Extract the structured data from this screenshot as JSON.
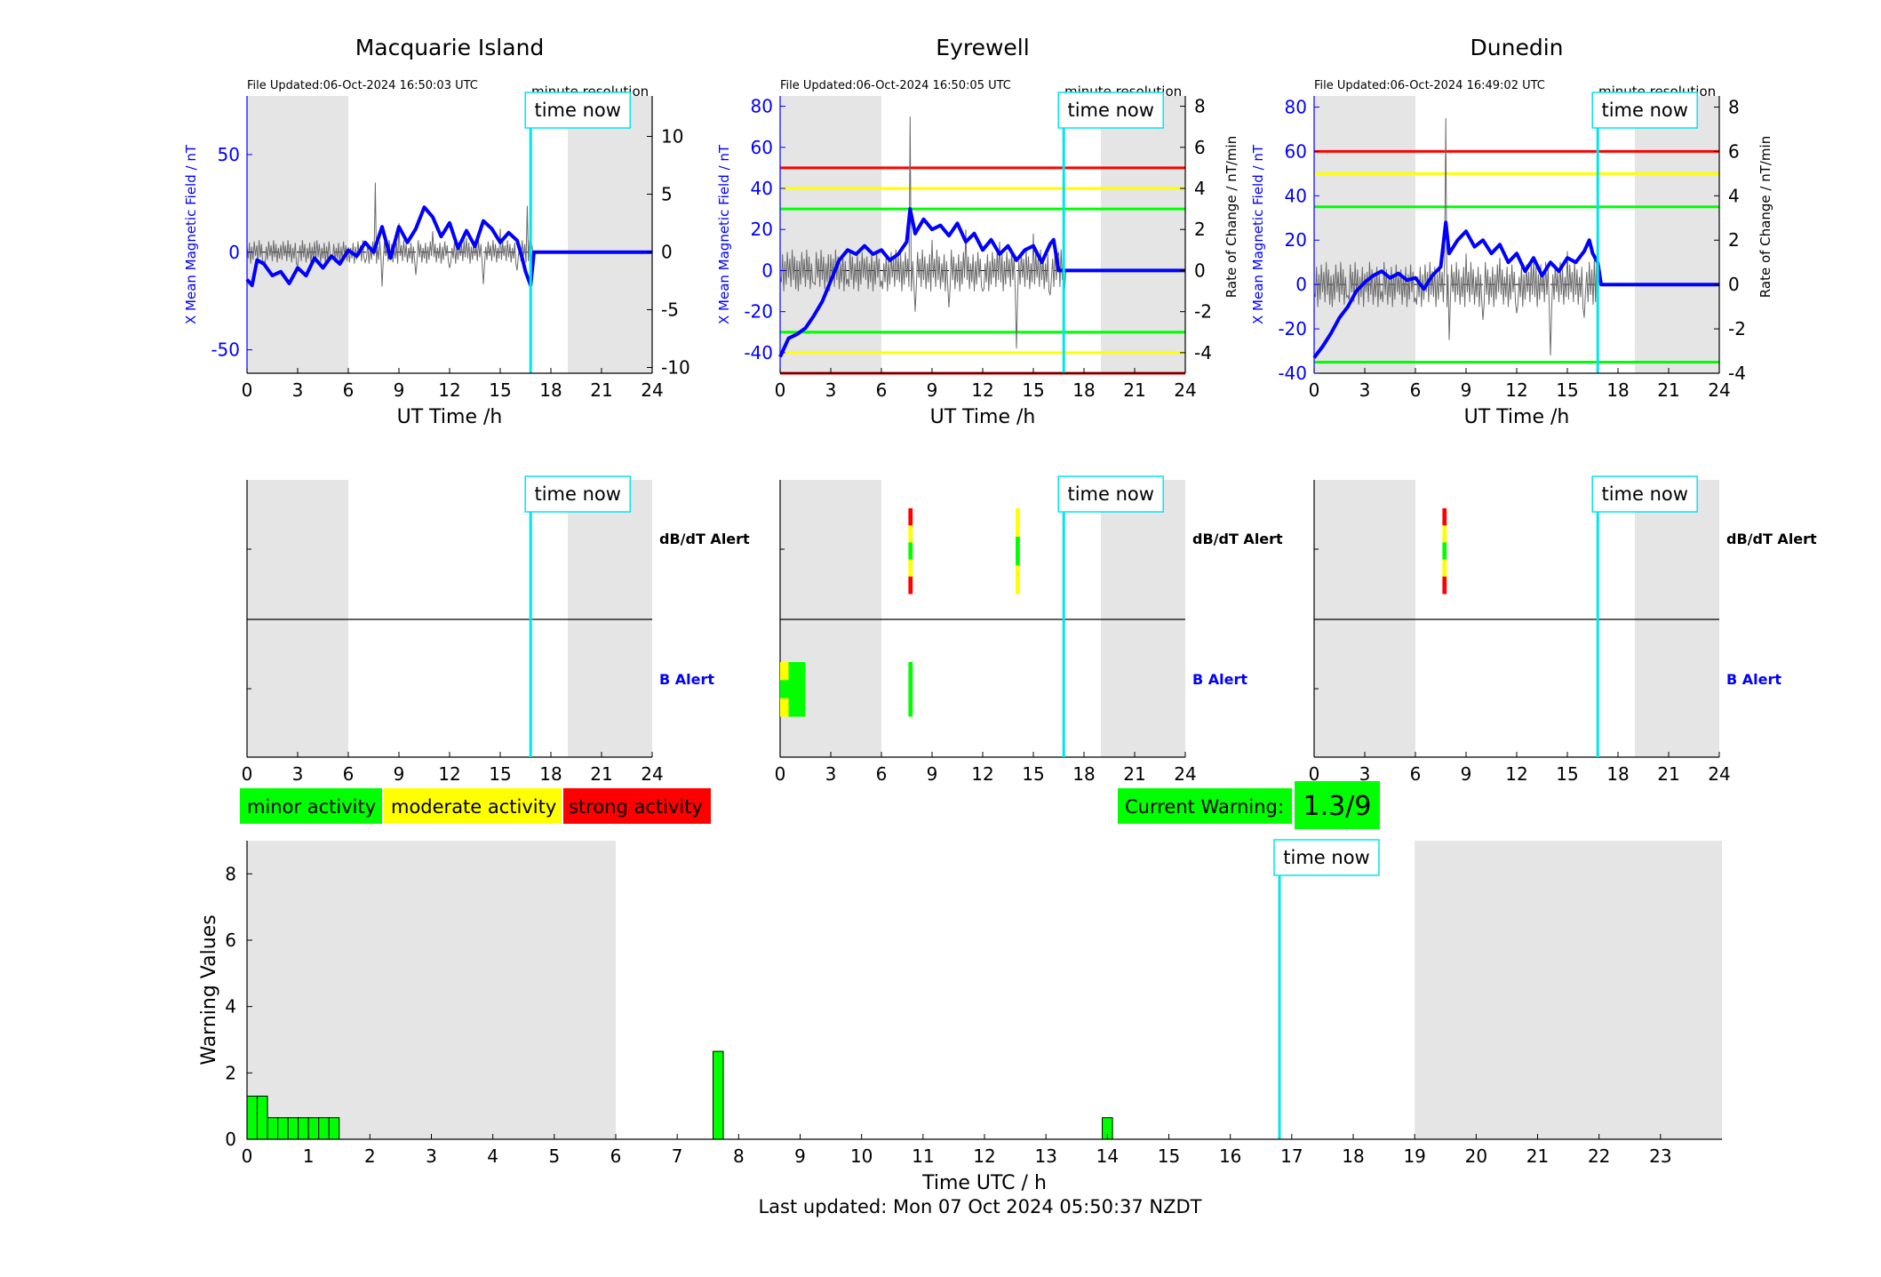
{
  "colors": {
    "x_field": "#0000ff",
    "rate_trace": "#6b6b6b",
    "time_now": "#00e5ee",
    "night_shade": "#e5e5e5",
    "minor": "#00ff00",
    "moderate": "#ffff00",
    "strong": "#ff0000",
    "b_alert_label": "#0000ff"
  },
  "time_now_label": "time now",
  "stations": [
    {
      "name": "Macquarie Island",
      "file_updated": "File Updated:06-Oct-2024 16:50:03 UTC",
      "resolution": "minute resolution",
      "left_axis_label": "X Mean Magnetic Field / nT",
      "right_axis_label": "",
      "x_label": "UT Time /h"
    },
    {
      "name": "Eyrewell",
      "file_updated": "File Updated:06-Oct-2024 16:50:05 UTC",
      "resolution": "minute resolution",
      "left_axis_label": "X Mean Magnetic Field / nT",
      "right_axis_label": "Rate of Change / nT/min",
      "x_label": "UT Time /h"
    },
    {
      "name": "Dunedin",
      "file_updated": "File Updated:06-Oct-2024 16:49:02 UTC",
      "resolution": "minute resolution",
      "left_axis_label": "X Mean Magnetic Field / nT",
      "right_axis_label": "Rate of Change / nT/min",
      "x_label": "UT Time /h"
    }
  ],
  "alerts": {
    "dbdt_label": "dB/dT Alert",
    "b_label": "B Alert"
  },
  "legend": {
    "minor": "minor activity",
    "moderate": "moderate activity",
    "strong": "strong activity"
  },
  "current_warning": {
    "label": "Current Warning:",
    "value": "1.3/9"
  },
  "footer": {
    "last_updated": "Last updated: Mon 07 Oct 2024 05:50:37 NZDT"
  },
  "chart_data": [
    {
      "type": "line",
      "title": "Macquarie Island",
      "xlabel": "UT Time /h",
      "ylabel": "X Mean Magnetic Field / nT",
      "xlim": [
        0,
        24
      ],
      "ylim": [
        -62,
        80
      ],
      "y2lim": [
        -10.5,
        13.5
      ],
      "xticks": [
        0,
        3,
        6,
        9,
        12,
        15,
        18,
        21,
        24
      ],
      "yticks": [
        -50,
        0,
        50
      ],
      "y2ticks": [
        -10,
        -5,
        0,
        5,
        10
      ],
      "night_shading_hours": [
        [
          0,
          6
        ],
        [
          19,
          24
        ]
      ],
      "time_now_hour": 16.8,
      "series": [
        {
          "name": "X Mean Magnetic Field / nT",
          "x": [
            0,
            0.3,
            0.6,
            1,
            1.5,
            2,
            2.5,
            3,
            3.5,
            4,
            4.5,
            5,
            5.5,
            6,
            6.5,
            7,
            7.5,
            8,
            8.5,
            9,
            9.5,
            10,
            10.5,
            11,
            11.5,
            12,
            12.5,
            13,
            13.5,
            14,
            14.5,
            15,
            15.5,
            16,
            16.3,
            16.5,
            16.8,
            17,
            18,
            24
          ],
          "y": [
            -14,
            -17,
            -4,
            -6,
            -12,
            -10,
            -16,
            -8,
            -12,
            -3,
            -8,
            -2,
            -6,
            1,
            -2,
            5,
            0,
            13,
            -3,
            13,
            5,
            12,
            23,
            18,
            8,
            15,
            2,
            11,
            3,
            16,
            12,
            5,
            10,
            6,
            -3,
            -10,
            -17,
            0,
            0,
            0
          ]
        },
        {
          "name": "Rate of Change / nT/min",
          "x": [
            0,
            1,
            2,
            3,
            4,
            5,
            6,
            7,
            7.6,
            8,
            9,
            10,
            11,
            12,
            13,
            14,
            15,
            16,
            16.6,
            17,
            24
          ],
          "y": [
            0.5,
            -0.8,
            0.6,
            -1.2,
            0.9,
            -0.6,
            0.4,
            -0.9,
            6,
            -3,
            2.5,
            -2,
            1.8,
            -1.4,
            1.2,
            -2.8,
            2,
            -1.6,
            4,
            0,
            0
          ]
        }
      ]
    },
    {
      "type": "line",
      "title": "Eyrewell",
      "xlabel": "UT Time /h",
      "ylabel": "X Mean Magnetic Field / nT",
      "y2label": "Rate of Change / nT/min",
      "xlim": [
        0,
        24
      ],
      "ylim": [
        -50,
        85
      ],
      "y2lim": [
        -5,
        8.5
      ],
      "xticks": [
        0,
        3,
        6,
        9,
        12,
        15,
        18,
        21,
        24
      ],
      "yticks": [
        -40,
        -20,
        0,
        20,
        40,
        60,
        80
      ],
      "y2ticks": [
        -4,
        -2,
        0,
        2,
        4,
        6,
        8
      ],
      "thresholds": [
        {
          "level": "strong",
          "y": 50
        },
        {
          "level": "moderate",
          "y": 40
        },
        {
          "level": "minor",
          "y": 30
        },
        {
          "level": "minor",
          "y": -30
        },
        {
          "level": "moderate",
          "y": -40
        },
        {
          "level": "strong",
          "y": -50
        }
      ],
      "night_shading_hours": [
        [
          0,
          6
        ],
        [
          19,
          24
        ]
      ],
      "time_now_hour": 16.8,
      "series": [
        {
          "name": "X Mean Magnetic Field / nT",
          "x": [
            0,
            0.5,
            1,
            1.5,
            2,
            2.5,
            3,
            3.5,
            4,
            4.5,
            5,
            5.5,
            6,
            6.5,
            7,
            7.5,
            7.7,
            8,
            8.5,
            9,
            9.5,
            10,
            10.5,
            11,
            11.5,
            12,
            12.5,
            13,
            13.5,
            14,
            14.5,
            15,
            15.5,
            16,
            16.2,
            16.5,
            17,
            24
          ],
          "y": [
            -42,
            -33,
            -31,
            -28,
            -22,
            -15,
            -5,
            5,
            10,
            8,
            12,
            8,
            10,
            5,
            8,
            14,
            30,
            18,
            25,
            20,
            22,
            17,
            23,
            14,
            18,
            10,
            15,
            8,
            12,
            5,
            10,
            12,
            4,
            13,
            15,
            0,
            0,
            0
          ]
        },
        {
          "name": "Rate of Change / nT/min",
          "x": [
            0,
            1,
            2,
            3,
            4,
            5,
            6,
            7,
            7.7,
            8,
            9,
            10,
            11,
            12,
            13,
            14,
            15,
            16,
            16.5,
            17,
            24
          ],
          "y": [
            -0.3,
            0.5,
            -0.6,
            0.8,
            -0.4,
            0.6,
            -0.5,
            0.7,
            7.5,
            -2,
            1.5,
            -1.8,
            2,
            -1,
            1.4,
            -3.8,
            1.8,
            -1.2,
            0.9,
            0,
            0
          ]
        }
      ]
    },
    {
      "type": "line",
      "title": "Dunedin",
      "xlabel": "UT Time /h",
      "ylabel": "X Mean Magnetic Field / nT",
      "y2label": "Rate of Change / nT/min",
      "xlim": [
        0,
        24
      ],
      "ylim": [
        -40,
        85
      ],
      "y2lim": [
        -4,
        8.5
      ],
      "xticks": [
        0,
        3,
        6,
        9,
        12,
        15,
        18,
        21,
        24
      ],
      "yticks": [
        -40,
        -20,
        0,
        20,
        40,
        60,
        80
      ],
      "y2ticks": [
        -4,
        -2,
        0,
        2,
        4,
        6,
        8
      ],
      "thresholds": [
        {
          "level": "strong",
          "y": 60
        },
        {
          "level": "moderate",
          "y": 50
        },
        {
          "level": "minor",
          "y": 35
        },
        {
          "level": "minor",
          "y": -35
        }
      ],
      "night_shading_hours": [
        [
          0,
          6
        ],
        [
          19,
          24
        ]
      ],
      "time_now_hour": 16.8,
      "series": [
        {
          "name": "X Mean Magnetic Field / nT",
          "x": [
            0,
            0.5,
            1,
            1.5,
            2,
            2.5,
            3,
            3.5,
            4,
            4.5,
            5,
            5.5,
            6,
            6.5,
            7,
            7.5,
            7.8,
            8,
            8.5,
            9,
            9.5,
            10,
            10.5,
            11,
            11.5,
            12,
            12.5,
            13,
            13.5,
            14,
            14.5,
            15,
            15.5,
            16,
            16.3,
            16.5,
            16.8,
            17,
            24
          ],
          "y": [
            -33,
            -28,
            -22,
            -15,
            -10,
            -3,
            1,
            4,
            6,
            3,
            5,
            2,
            3,
            -2,
            4,
            8,
            28,
            14,
            20,
            24,
            17,
            20,
            14,
            18,
            10,
            14,
            6,
            12,
            4,
            10,
            6,
            12,
            10,
            15,
            20,
            14,
            10,
            0,
            0
          ]
        },
        {
          "name": "Rate of Change / nT/min",
          "x": [
            0,
            1,
            2,
            3,
            4,
            5,
            6,
            7,
            7.8,
            8,
            9,
            10,
            11,
            12,
            13,
            14,
            15,
            16,
            16.6,
            17,
            24
          ],
          "y": [
            -0.4,
            0.4,
            -0.5,
            0.5,
            -0.3,
            0.4,
            -0.6,
            0.6,
            7.5,
            -2.5,
            1.4,
            -1.6,
            1.2,
            -1.3,
            1.1,
            -3.2,
            1.5,
            -1.5,
            1.2,
            0,
            0
          ]
        }
      ]
    },
    {
      "type": "bar",
      "title": "",
      "xlabel": "Time UTC / h",
      "ylabel": "Warning Values",
      "xlim": [
        0,
        24
      ],
      "ylim": [
        0,
        9
      ],
      "xticks": [
        0,
        1,
        2,
        3,
        4,
        5,
        6,
        7,
        8,
        9,
        10,
        11,
        12,
        13,
        14,
        15,
        16,
        17,
        18,
        19,
        20,
        21,
        22,
        23
      ],
      "yticks": [
        0,
        2,
        4,
        6,
        8
      ],
      "night_shading_hours": [
        [
          0,
          6
        ],
        [
          19,
          24
        ]
      ],
      "time_now_hour": 16.8,
      "bar_width_hours": 0.1667,
      "x": [
        0,
        0.1667,
        0.3333,
        0.5,
        0.6667,
        0.8333,
        1,
        1.1667,
        1.3333,
        7.5833,
        13.9167
      ],
      "values": [
        1.3,
        1.3,
        0.65,
        0.65,
        0.65,
        0.65,
        0.65,
        0.65,
        0.65,
        2.65,
        0.65
      ]
    }
  ],
  "alert_strips": [
    {
      "station": "Macquarie Island",
      "dbdt": [],
      "b": []
    },
    {
      "station": "Eyrewell",
      "dbdt": [
        {
          "start": 7.6,
          "end": 7.85,
          "levels": [
            "strong",
            "moderate",
            "minor",
            "moderate",
            "strong"
          ]
        },
        {
          "start": 13.95,
          "end": 14.2,
          "levels": [
            "moderate",
            "minor",
            "moderate"
          ]
        }
      ],
      "b": [
        {
          "start": 0,
          "end": 0.5,
          "levels": [
            "moderate",
            "minor",
            "moderate"
          ]
        },
        {
          "start": 0.5,
          "end": 1.5,
          "levels": [
            "minor"
          ]
        },
        {
          "start": 7.6,
          "end": 7.85,
          "levels": [
            "minor"
          ]
        }
      ]
    },
    {
      "station": "Dunedin",
      "dbdt": [
        {
          "start": 7.6,
          "end": 7.85,
          "levels": [
            "strong",
            "moderate",
            "minor",
            "moderate",
            "strong"
          ]
        }
      ],
      "b": []
    }
  ]
}
